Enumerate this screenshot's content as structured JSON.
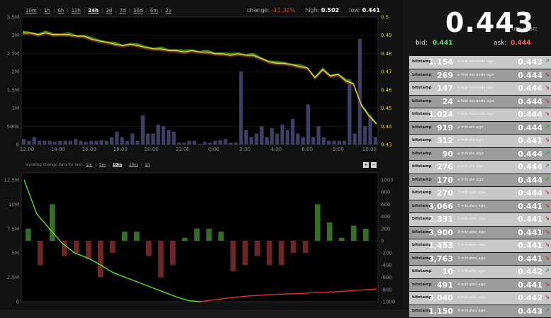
{
  "header": {
    "timeframes": [
      "10m",
      "1h",
      "6h",
      "12h",
      "24h",
      "3d",
      "7d",
      "30d",
      "6m",
      "2y"
    ],
    "active_timeframe": "24h",
    "change_label": "change:",
    "change_value": "-11.32%",
    "high_label": "high:",
    "high_value": "0.502",
    "low_label": "low:",
    "low_value": "0.441"
  },
  "ticker": {
    "price": "0.443",
    "unit": "USD / mBTC",
    "bid_label": "bid:",
    "bid_value": "0.441",
    "ask_label": "ask:",
    "ask_value": "0.444"
  },
  "subchart": {
    "label": "showing change bars for last:",
    "options": [
      "1m",
      "5m",
      "10m",
      "30m",
      "1h"
    ],
    "active_option": "10m",
    "zoom_in": "+",
    "zoom_out": "−"
  },
  "colors": {
    "price_line": "#e8e03a",
    "green": "#3c9a2e",
    "red": "#8a2a2a",
    "volume": "#4a4a78",
    "up_arrow": "#2f9e3a",
    "down_arrow": "#d02020"
  },
  "trades": [
    {
      "exchange": "bitstamp",
      "amount": "1,154",
      "time": "a few seconds ago",
      "price": "0.443",
      "direction": "up"
    },
    {
      "exchange": "bitstamp",
      "amount": "269",
      "time": "a few seconds ago",
      "price": "0.444",
      "direction": "down"
    },
    {
      "exchange": "bitstamp",
      "amount": "147",
      "time": "a few seconds ago",
      "price": "0.444",
      "direction": "down"
    },
    {
      "exchange": "bitstamp",
      "amount": "24",
      "time": "a few seconds ago",
      "price": "0.444",
      "direction": "down"
    },
    {
      "exchange": "bitstamp",
      "amount": "1,024",
      "time": "a few seconds ago",
      "price": "0.444",
      "direction": "down"
    },
    {
      "exchange": "bitstamp",
      "amount": "919",
      "time": "a minute ago",
      "price": "0.444",
      "direction": "up"
    },
    {
      "exchange": "bitstamp",
      "amount": "312",
      "time": "a minute ago",
      "price": "0.441",
      "direction": "down"
    },
    {
      "exchange": "bitstamp",
      "amount": "90",
      "time": "a minute ago",
      "price": "0.444",
      "direction": "up"
    },
    {
      "exchange": "bitstamp",
      "amount": "276",
      "time": "a minute ago",
      "price": "0.444",
      "direction": "up"
    },
    {
      "exchange": "bitstamp",
      "amount": "170",
      "time": "a minute ago",
      "price": "0.444",
      "direction": "up"
    },
    {
      "exchange": "bitstamp",
      "amount": "270",
      "time": "2 minutes ago",
      "price": "0.444",
      "direction": "down"
    },
    {
      "exchange": "bitstamp",
      "amount": "3,066",
      "time": "2 minutes ago",
      "price": "0.441",
      "direction": "down"
    },
    {
      "exchange": "bitstamp",
      "amount": "2,331",
      "time": "2 minutes ago",
      "price": "0.441",
      "direction": "down"
    },
    {
      "exchange": "bitstamp",
      "amount": "3,900",
      "time": "3 minutes ago",
      "price": "0.441",
      "direction": "down"
    },
    {
      "exchange": "bitstamp",
      "amount": "1,453",
      "time": "3 minutes ago",
      "price": "0.441",
      "direction": "down"
    },
    {
      "exchange": "bitstamp",
      "amount": "3,763",
      "time": "3 minutes ago",
      "price": "0.441",
      "direction": "down"
    },
    {
      "exchange": "bitstamp",
      "amount": "10",
      "time": "3 minutes ago",
      "price": "0.442",
      "direction": "up"
    },
    {
      "exchange": "bitstamp",
      "amount": "491",
      "time": "4 minutes ago",
      "price": "0.441",
      "direction": "down"
    },
    {
      "exchange": "bitstamp",
      "amount": "3,040",
      "time": "4 minutes ago",
      "price": "0.442",
      "direction": "down"
    },
    {
      "exchange": "bitstamp",
      "amount": "1,150",
      "time": "4 minutes ago",
      "price": "0.443",
      "direction": "up"
    }
  ],
  "chart_data": [
    {
      "type": "line",
      "series": [
        {
          "name": "",
          "x": [
            "12:00",
            "12:30",
            "13:00",
            "13:30",
            "14:00",
            "14:30",
            "15:00",
            "15:30",
            "16:00",
            "16:30",
            "17:00",
            "17:30",
            "18:00",
            "18:30",
            "19:00",
            "19:30",
            "20:00",
            "20:30",
            "21:00",
            "21:30",
            "22:00",
            "22:30",
            "23:00",
            "23:30",
            "0:00",
            "0:30",
            "1:00",
            "1:30",
            "2:00",
            "2:30",
            "3:00",
            "3:30",
            "4:00",
            "4:30",
            "5:00",
            "5:30",
            "6:00",
            "6:30",
            "7:00",
            "7:30",
            "8:00",
            "8:30",
            "9:00",
            "9:30",
            "10:00",
            "10:30",
            "11:00"
          ],
          "values": [
            0.5,
            0.5,
            0.499,
            0.5,
            0.499,
            0.499,
            0.499,
            0.498,
            0.498,
            0.496,
            0.495,
            0.494,
            0.493,
            0.492,
            0.493,
            0.492,
            0.491,
            0.49,
            0.49,
            0.489,
            0.489,
            0.488,
            0.489,
            0.488,
            0.488,
            0.487,
            0.487,
            0.486,
            0.487,
            0.486,
            0.486,
            0.484,
            0.482,
            0.481,
            0.481,
            0.48,
            0.479,
            0.478,
            0.472,
            0.477,
            0.473,
            0.474,
            0.47,
            0.468,
            0.455,
            0.448,
            0.443
          ]
        }
      ],
      "bars": {
        "name": "",
        "values": [
          0.15,
          0.1,
          0.2,
          0.1,
          0.1,
          0.1,
          0.08,
          0.1,
          0.1,
          0.1,
          0.15,
          0.1,
          0.08,
          0.1,
          0.1,
          0.12,
          0.1,
          0.2,
          0.35,
          0.2,
          0.1,
          0.3,
          0.1,
          0.8,
          0.3,
          0.3,
          0.55,
          0.5,
          0.4,
          0.35,
          0.05,
          0.05,
          0.1,
          0.1,
          0.02,
          0.08,
          0.05,
          0.1,
          0.12,
          0.15,
          0.05,
          0.05,
          2.0,
          0.4,
          0.2,
          0.3,
          0.5,
          0.2,
          0.45,
          0.3,
          0.55,
          0.4,
          0.7,
          0.3,
          0.2,
          1.1,
          0.2,
          0.5,
          0.2,
          0.1,
          0.1,
          0.1,
          0.1,
          1.8,
          0.3,
          2.9,
          0.5,
          0.8,
          0.2
        ],
        "ylim": [
          0,
          3.5
        ],
        "unit": "M"
      },
      "ylim": [
        0.43,
        0.51
      ],
      "y_ticks_left": [
        "0",
        "500k",
        "1M",
        "1.5M",
        "2M",
        "2.5M",
        "3M",
        "3.5M"
      ],
      "y_ticks_right": [
        "0.43",
        "0.44",
        "0.45",
        "0.46",
        "0.47",
        "0.48",
        "0.49",
        "0.5"
      ],
      "x_ticks": [
        "12:00",
        "14:00",
        "16:00",
        "18:00",
        "20:00",
        "22:00",
        "0:00",
        "2:00",
        "4:00",
        "6:00",
        "8:00",
        "10:00"
      ]
    },
    {
      "type": "bar",
      "y_ticks_left": [
        "0",
        "2.5M",
        "5M",
        "7.5M",
        "10M",
        "12.5M"
      ],
      "y_ticks_right": [
        "-1000",
        "-800",
        "-600",
        "-400",
        "-200",
        "0",
        "200",
        "400",
        "600",
        "800",
        "1000"
      ],
      "change_bars": [
        20,
        -40,
        60,
        -25,
        -20,
        -30,
        -60,
        -20,
        15,
        15,
        -25,
        -60,
        -40,
        5,
        20,
        20,
        15,
        -50,
        -40,
        -25,
        -40,
        -40,
        -20,
        -20,
        60,
        30,
        5,
        25,
        20
      ],
      "green_cumulative": [
        12.5,
        9,
        7.5,
        6,
        5,
        4.5,
        3.8,
        3,
        2.5,
        2,
        1.5,
        1,
        0.5,
        0.1,
        0
      ],
      "red_cumulative": [
        0,
        0.2,
        0.4,
        0.55,
        0.65,
        0.75,
        0.8,
        0.85,
        0.95,
        1,
        1.1,
        1.2,
        1.3
      ],
      "ylim_left": [
        0,
        12.5
      ],
      "ylim_right": [
        -1000,
        1000
      ]
    }
  ]
}
